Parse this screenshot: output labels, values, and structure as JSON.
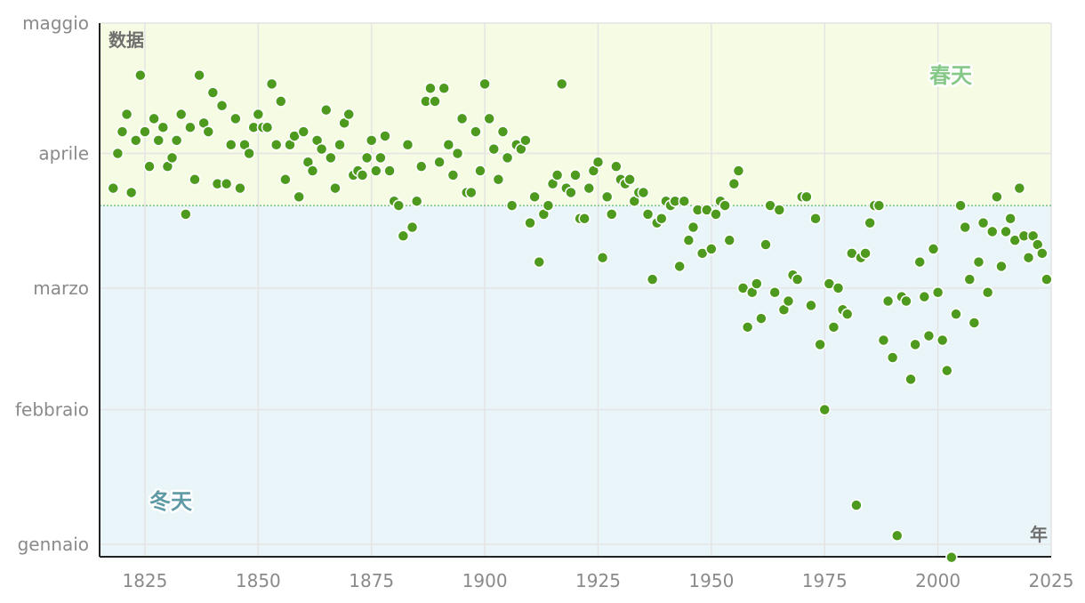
{
  "chart_data": {
    "type": "scatter",
    "ylabel": "数据",
    "xlabel": "年",
    "xlim": [
      1815,
      2025
    ],
    "x_ticks": [
      1825,
      1850,
      1875,
      1900,
      1925,
      1950,
      1975,
      2000,
      2025
    ],
    "ylim": [
      "2025-01-01",
      "2025-05-01"
    ],
    "y_ticks": [
      {
        "date": "2025-01-01",
        "label": "gennaio"
      },
      {
        "date": "2025-02-01",
        "label": "febbraio"
      },
      {
        "date": "2025-03-01",
        "label": "marzo"
      },
      {
        "date": "2025-04-01",
        "label": "aprile"
      }
    ],
    "y_top_label": "maggio",
    "threshold": {
      "date": "2025-03-20"
    },
    "grid": true,
    "colors": {
      "point": "#4d9a1f",
      "point_stroke": "#ffffff",
      "spring_band": "#f6fbe4",
      "winter_band": "#eaf5fa",
      "spring_text": "#86c888",
      "winter_text": "#5e9aa6",
      "threshold_line": "#62b36a",
      "grid": "#e4e4e4",
      "axis": "#222222"
    },
    "zones": {
      "spring": "春天",
      "winter": "冬天"
    },
    "points": [
      [
        1818,
        "03-24"
      ],
      [
        1819,
        "04-01"
      ],
      [
        1820,
        "04-06"
      ],
      [
        1821,
        "04-10"
      ],
      [
        1822,
        "03-23"
      ],
      [
        1823,
        "04-04"
      ],
      [
        1824,
        "04-19"
      ],
      [
        1825,
        "04-06"
      ],
      [
        1826,
        "03-29"
      ],
      [
        1827,
        "04-09"
      ],
      [
        1828,
        "04-04"
      ],
      [
        1829,
        "04-07"
      ],
      [
        1830,
        "03-29"
      ],
      [
        1831,
        "03-31"
      ],
      [
        1832,
        "04-04"
      ],
      [
        1833,
        "04-10"
      ],
      [
        1834,
        "03-18"
      ],
      [
        1835,
        "04-07"
      ],
      [
        1836,
        "03-26"
      ],
      [
        1837,
        "04-19"
      ],
      [
        1838,
        "04-08"
      ],
      [
        1839,
        "04-06"
      ],
      [
        1840,
        "04-15"
      ],
      [
        1841,
        "03-25"
      ],
      [
        1842,
        "04-12"
      ],
      [
        1843,
        "03-25"
      ],
      [
        1844,
        "04-03"
      ],
      [
        1845,
        "04-09"
      ],
      [
        1846,
        "03-24"
      ],
      [
        1847,
        "04-03"
      ],
      [
        1848,
        "04-01"
      ],
      [
        1849,
        "04-07"
      ],
      [
        1850,
        "04-10"
      ],
      [
        1851,
        "04-07"
      ],
      [
        1852,
        "04-07"
      ],
      [
        1853,
        "04-17"
      ],
      [
        1854,
        "04-03"
      ],
      [
        1855,
        "04-13"
      ],
      [
        1856,
        "03-26"
      ],
      [
        1857,
        "04-03"
      ],
      [
        1858,
        "04-05"
      ],
      [
        1859,
        "03-22"
      ],
      [
        1860,
        "04-06"
      ],
      [
        1861,
        "03-30"
      ],
      [
        1862,
        "03-28"
      ],
      [
        1863,
        "04-04"
      ],
      [
        1864,
        "04-02"
      ],
      [
        1865,
        "04-11"
      ],
      [
        1866,
        "03-31"
      ],
      [
        1867,
        "03-24"
      ],
      [
        1868,
        "04-03"
      ],
      [
        1869,
        "04-08"
      ],
      [
        1870,
        "04-10"
      ],
      [
        1871,
        "03-27"
      ],
      [
        1872,
        "03-28"
      ],
      [
        1873,
        "03-27"
      ],
      [
        1874,
        "03-31"
      ],
      [
        1875,
        "04-04"
      ],
      [
        1876,
        "03-28"
      ],
      [
        1877,
        "03-31"
      ],
      [
        1878,
        "04-05"
      ],
      [
        1879,
        "03-28"
      ],
      [
        1880,
        "03-21"
      ],
      [
        1881,
        "03-20"
      ],
      [
        1882,
        "03-13"
      ],
      [
        1883,
        "04-03"
      ],
      [
        1884,
        "03-15"
      ],
      [
        1885,
        "03-21"
      ],
      [
        1886,
        "03-29"
      ],
      [
        1887,
        "04-13"
      ],
      [
        1888,
        "04-16"
      ],
      [
        1889,
        "04-13"
      ],
      [
        1890,
        "03-30"
      ],
      [
        1891,
        "04-16"
      ],
      [
        1892,
        "04-03"
      ],
      [
        1893,
        "03-27"
      ],
      [
        1894,
        "04-01"
      ],
      [
        1895,
        "04-09"
      ],
      [
        1896,
        "03-23"
      ],
      [
        1897,
        "03-23"
      ],
      [
        1898,
        "04-06"
      ],
      [
        1899,
        "03-28"
      ],
      [
        1900,
        "04-17"
      ],
      [
        1901,
        "04-09"
      ],
      [
        1902,
        "04-02"
      ],
      [
        1903,
        "03-26"
      ],
      [
        1904,
        "04-06"
      ],
      [
        1905,
        "03-31"
      ],
      [
        1906,
        "03-20"
      ],
      [
        1907,
        "04-03"
      ],
      [
        1908,
        "04-02"
      ],
      [
        1909,
        "04-04"
      ],
      [
        1910,
        "03-16"
      ],
      [
        1911,
        "03-22"
      ],
      [
        1912,
        "03-07"
      ],
      [
        1913,
        "03-18"
      ],
      [
        1914,
        "03-20"
      ],
      [
        1915,
        "03-25"
      ],
      [
        1916,
        "03-27"
      ],
      [
        1917,
        "04-17"
      ],
      [
        1918,
        "03-24"
      ],
      [
        1919,
        "03-23"
      ],
      [
        1920,
        "03-27"
      ],
      [
        1921,
        "03-17"
      ],
      [
        1922,
        "03-17"
      ],
      [
        1923,
        "03-24"
      ],
      [
        1924,
        "03-28"
      ],
      [
        1925,
        "03-30"
      ],
      [
        1926,
        "03-08"
      ],
      [
        1927,
        "03-22"
      ],
      [
        1928,
        "03-18"
      ],
      [
        1929,
        "03-29"
      ],
      [
        1930,
        "03-26"
      ],
      [
        1931,
        "03-25"
      ],
      [
        1932,
        "03-26"
      ],
      [
        1933,
        "03-21"
      ],
      [
        1934,
        "03-23"
      ],
      [
        1935,
        "03-23"
      ],
      [
        1936,
        "03-18"
      ],
      [
        1937,
        "03-03"
      ],
      [
        1938,
        "03-16"
      ],
      [
        1939,
        "03-17"
      ],
      [
        1940,
        "03-21"
      ],
      [
        1941,
        "03-20"
      ],
      [
        1942,
        "03-21"
      ],
      [
        1943,
        "03-06"
      ],
      [
        1944,
        "03-21"
      ],
      [
        1945,
        "03-12"
      ],
      [
        1946,
        "03-15"
      ],
      [
        1947,
        "03-19"
      ],
      [
        1948,
        "03-09"
      ],
      [
        1949,
        "03-19"
      ],
      [
        1950,
        "03-10"
      ],
      [
        1951,
        "03-18"
      ],
      [
        1952,
        "03-21"
      ],
      [
        1953,
        "03-20"
      ],
      [
        1954,
        "03-12"
      ],
      [
        1955,
        "03-25"
      ],
      [
        1956,
        "03-28"
      ],
      [
        1957,
        "03-01"
      ],
      [
        1958,
        "02-20"
      ],
      [
        1959,
        "02-28"
      ],
      [
        1960,
        "03-02"
      ],
      [
        1961,
        "02-22"
      ],
      [
        1962,
        "03-11"
      ],
      [
        1963,
        "03-20"
      ],
      [
        1964,
        "02-28"
      ],
      [
        1965,
        "03-19"
      ],
      [
        1966,
        "02-24"
      ],
      [
        1967,
        "02-26"
      ],
      [
        1968,
        "03-04"
      ],
      [
        1969,
        "03-03"
      ],
      [
        1970,
        "03-22"
      ],
      [
        1971,
        "03-22"
      ],
      [
        1972,
        "02-25"
      ],
      [
        1973,
        "03-17"
      ],
      [
        1974,
        "02-16"
      ],
      [
        1975,
        "02-01"
      ],
      [
        1976,
        "03-02"
      ],
      [
        1977,
        "02-20"
      ],
      [
        1978,
        "03-01"
      ],
      [
        1979,
        "02-24"
      ],
      [
        1980,
        "02-23"
      ],
      [
        1981,
        "03-09"
      ],
      [
        1982,
        "01-10"
      ],
      [
        1983,
        "03-08"
      ],
      [
        1984,
        "03-09"
      ],
      [
        1985,
        "03-16"
      ],
      [
        1986,
        "03-20"
      ],
      [
        1987,
        "03-20"
      ],
      [
        1988,
        "02-17"
      ],
      [
        1989,
        "02-26"
      ],
      [
        1990,
        "02-13"
      ],
      [
        1991,
        "01-03"
      ],
      [
        1992,
        "02-27"
      ],
      [
        1993,
        "02-26"
      ],
      [
        1994,
        "02-08"
      ],
      [
        1995,
        "02-16"
      ],
      [
        1996,
        "03-07"
      ],
      [
        1997,
        "02-27"
      ],
      [
        1998,
        "02-18"
      ],
      [
        1999,
        "03-10"
      ],
      [
        2000,
        "02-28"
      ],
      [
        2001,
        "02-17"
      ],
      [
        2002,
        "02-10"
      ],
      [
        2003,
        "12-29"
      ],
      [
        2004,
        "02-23"
      ],
      [
        2005,
        "03-20"
      ],
      [
        2006,
        "03-15"
      ],
      [
        2007,
        "03-03"
      ],
      [
        2008,
        "02-21"
      ],
      [
        2009,
        "03-07"
      ],
      [
        2010,
        "03-16"
      ],
      [
        2011,
        "02-28"
      ],
      [
        2012,
        "03-14"
      ],
      [
        2013,
        "03-22"
      ],
      [
        2014,
        "03-06"
      ],
      [
        2015,
        "03-14"
      ],
      [
        2016,
        "03-17"
      ],
      [
        2017,
        "03-12"
      ],
      [
        2018,
        "03-24"
      ],
      [
        2019,
        "03-13"
      ],
      [
        2020,
        "03-08"
      ],
      [
        2021,
        "03-13"
      ],
      [
        2022,
        "03-11"
      ],
      [
        2023,
        "03-09"
      ],
      [
        2024,
        "03-03"
      ]
    ]
  }
}
